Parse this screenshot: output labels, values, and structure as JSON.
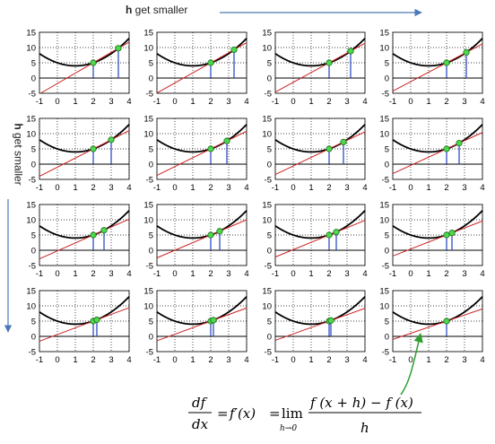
{
  "labels": {
    "top": {
      "bold": "h",
      "rest": " get smaller"
    },
    "side": {
      "bold": "h",
      "rest": " get smaller"
    }
  },
  "axes": {
    "x_ticks": [
      "-1",
      "0",
      "1",
      "2",
      "3",
      "4"
    ],
    "y_ticks": [
      "15",
      "10",
      "5",
      "0",
      "-5"
    ],
    "xlim": [
      -1,
      4
    ],
    "ylim": [
      -5,
      15
    ]
  },
  "function": "f(x) = (x-1)^2 + 4",
  "base_point_x": 2,
  "h_values": [
    [
      1.4,
      1.3,
      1.2,
      1.1
    ],
    [
      1.0,
      0.9,
      0.8,
      0.7
    ],
    [
      0.6,
      0.5,
      0.4,
      0.3
    ],
    [
      0.2,
      0.15,
      0.1,
      0.0
    ]
  ],
  "colors": {
    "curve": "#000000",
    "secant": "#cc2222",
    "drop_line": "#1f3fbf",
    "point_fill": "#4cd94c",
    "arrow_blue": "#4a7ab8",
    "arrow_green": "#2e9e2e"
  },
  "formula": {
    "lhs_num": "df",
    "lhs_den": "dx",
    "eq1": "=",
    "mid": "f′(x)",
    "eq2": "=",
    "lim": "lim",
    "lim_sub": "h→0",
    "num": "f (x + h) − f (x)",
    "den": "h"
  }
}
